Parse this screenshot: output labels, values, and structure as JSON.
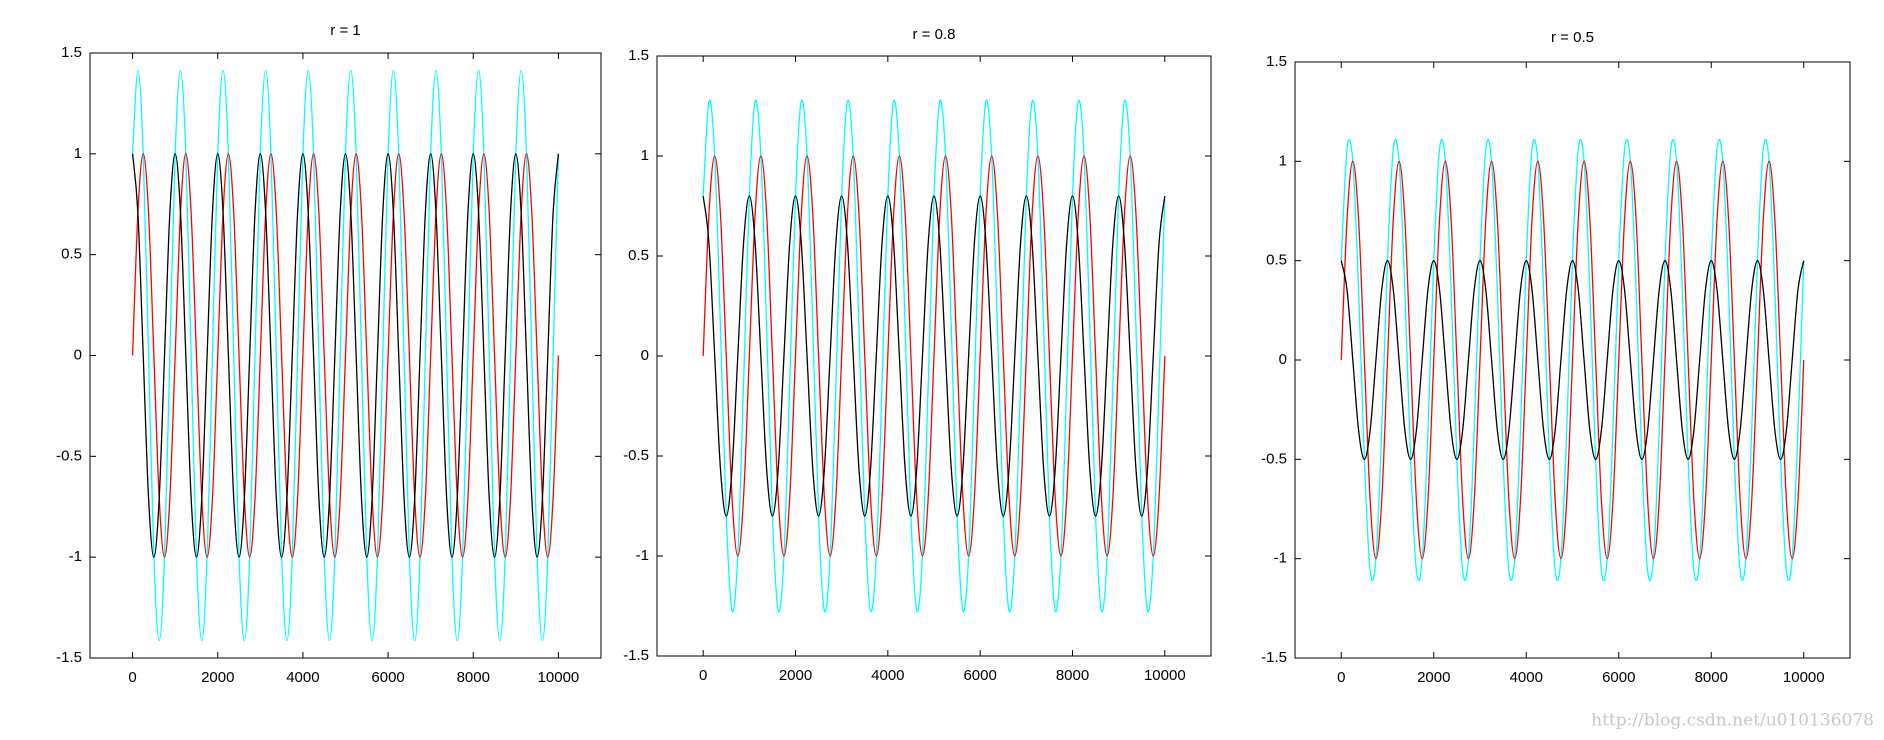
{
  "chart_data": [
    {
      "type": "line",
      "title": "r = 1",
      "x": [
        0,
        125,
        250,
        375,
        500,
        625,
        750,
        875,
        1000,
        1125,
        1250,
        1375,
        1500,
        1625,
        1750,
        1875,
        2000,
        2125,
        2250,
        2375,
        2500,
        2625,
        2750,
        2875,
        3000,
        3125,
        3250,
        3375,
        3500,
        3625,
        3750,
        3875,
        4000,
        4125,
        4250,
        4375,
        4500,
        4625,
        4750,
        4875,
        5000,
        5125,
        5250,
        5375,
        5500,
        5625,
        5750,
        5875,
        6000,
        6125,
        6250,
        6375,
        6500,
        6625,
        6750,
        6875,
        7000,
        7125,
        7250,
        7375,
        7500,
        7625,
        7750,
        7875,
        8000,
        8125,
        8250,
        8375,
        8500,
        8625,
        8750,
        8875,
        9000,
        9125,
        9250,
        9375,
        9500,
        9625,
        9750,
        9875,
        10000
      ],
      "series": [
        {
          "color": "#00ffff",
          "values": [
            1,
            1.414,
            1,
            0,
            -1,
            -1.414,
            -1,
            0,
            1,
            1.414,
            1,
            0,
            -1,
            -1.414,
            -1,
            0,
            1,
            1.414,
            1,
            0,
            -1,
            -1.414,
            -1,
            0,
            1,
            1.414,
            1,
            0,
            -1,
            -1.414,
            -1,
            0,
            1,
            1.414,
            1,
            0,
            -1,
            -1.414,
            -1,
            0,
            1,
            1.414,
            1,
            0,
            -1,
            -1.414,
            -1,
            0,
            1,
            1.414,
            1,
            0,
            -1,
            -1.414,
            -1,
            0,
            1,
            1.414,
            1,
            0,
            -1,
            -1.414,
            -1,
            0,
            1,
            1.414,
            1,
            0,
            -1,
            -1.414,
            -1,
            0,
            1,
            1.414,
            1,
            0,
            -1,
            -1.414,
            -1,
            0,
            1
          ]
        },
        {
          "color": "#ff0000",
          "values": [
            0,
            0.707,
            1,
            0.707,
            0,
            -0.707,
            -1,
            -0.707,
            0,
            0.707,
            1,
            0.707,
            0,
            -0.707,
            -1,
            -0.707,
            0,
            0.707,
            1,
            0.707,
            0,
            -0.707,
            -1,
            -0.707,
            0,
            0.707,
            1,
            0.707,
            0,
            -0.707,
            -1,
            -0.707,
            0,
            0.707,
            1,
            0.707,
            0,
            -0.707,
            -1,
            -0.707,
            0,
            0.707,
            1,
            0.707,
            0,
            -0.707,
            -1,
            -0.707,
            0,
            0.707,
            1,
            0.707,
            0,
            -0.707,
            -1,
            -0.707,
            0,
            0.707,
            1,
            0.707,
            0,
            -0.707,
            -1,
            -0.707,
            0,
            0.707,
            1,
            0.707,
            0,
            -0.707,
            -1,
            -0.707,
            0,
            0.707,
            1,
            0.707,
            0,
            -0.707,
            -1,
            -0.707,
            0
          ]
        },
        {
          "color": "#000000",
          "values": [
            1,
            0.707,
            0,
            -0.707,
            -1,
            -0.707,
            0,
            0.707,
            1,
            0.707,
            0,
            -0.707,
            -1,
            -0.707,
            0,
            0.707,
            1,
            0.707,
            0,
            -0.707,
            -1,
            -0.707,
            0,
            0.707,
            1,
            0.707,
            0,
            -0.707,
            -1,
            -0.707,
            0,
            0.707,
            1,
            0.707,
            0,
            -0.707,
            -1,
            -0.707,
            0,
            0.707,
            1,
            0.707,
            0,
            -0.707,
            -1,
            -0.707,
            0,
            0.707,
            1,
            0.707,
            0,
            -0.707,
            -1,
            -0.707,
            0,
            0.707,
            1,
            0.707,
            0,
            -0.707,
            -1,
            -0.707,
            0,
            0.707,
            1,
            0.707,
            0,
            -0.707,
            -1,
            -0.707,
            0,
            0.707,
            1,
            0.707,
            0,
            -0.707,
            -1,
            -0.707,
            0,
            0.707,
            1
          ]
        }
      ],
      "xlim": [
        -1000,
        11000
      ],
      "xticks": [
        0,
        2000,
        4000,
        6000,
        8000,
        10000
      ],
      "ylim": [
        -1.5,
        1.5
      ],
      "yticks": [
        -1.5,
        -1,
        -0.5,
        0,
        0.5,
        1,
        1.5
      ]
    },
    {
      "type": "line",
      "title": "r = 0.8",
      "x": [
        0,
        125,
        250,
        375,
        500,
        625,
        750,
        875,
        1000,
        1125,
        1250,
        1375,
        1500,
        1625,
        1750,
        1875,
        2000,
        2125,
        2250,
        2375,
        2500,
        2625,
        2750,
        2875,
        3000,
        3125,
        3250,
        3375,
        3500,
        3625,
        3750,
        3875,
        4000,
        4125,
        4250,
        4375,
        4500,
        4625,
        4750,
        4875,
        5000,
        5125,
        5250,
        5375,
        5500,
        5625,
        5750,
        5875,
        6000,
        6125,
        6250,
        6375,
        6500,
        6625,
        6750,
        6875,
        7000,
        7125,
        7250,
        7375,
        7500,
        7625,
        7750,
        7875,
        8000,
        8125,
        8250,
        8375,
        8500,
        8625,
        8750,
        8875,
        9000,
        9125,
        9250,
        9375,
        9500,
        9625,
        9750,
        9875,
        10000
      ],
      "series": [
        {
          "color": "#00ffff",
          "values": [
            0.8,
            1.273,
            1,
            0.141,
            -0.8,
            -1.273,
            -1,
            -0.141,
            0.8,
            1.273,
            1,
            0.141,
            -0.8,
            -1.273,
            -1,
            -0.141,
            0.8,
            1.273,
            1,
            0.141,
            -0.8,
            -1.273,
            -1,
            -0.141,
            0.8,
            1.273,
            1,
            0.141,
            -0.8,
            -1.273,
            -1,
            -0.141,
            0.8,
            1.273,
            1,
            0.141,
            -0.8,
            -1.273,
            -1,
            -0.141,
            0.8,
            1.273,
            1,
            0.141,
            -0.8,
            -1.273,
            -1,
            -0.141,
            0.8,
            1.273,
            1,
            0.141,
            -0.8,
            -1.273,
            -1,
            -0.141,
            0.8,
            1.273,
            1,
            0.141,
            -0.8,
            -1.273,
            -1,
            -0.141,
            0.8,
            1.273,
            1,
            0.141,
            -0.8,
            -1.273,
            -1,
            -0.141,
            0.8,
            1.273,
            1,
            0.141,
            -0.8,
            -1.273,
            -1,
            -0.141,
            0.8
          ]
        },
        {
          "color": "#ff0000",
          "values": [
            0,
            0.707,
            1,
            0.707,
            0,
            -0.707,
            -1,
            -0.707,
            0,
            0.707,
            1,
            0.707,
            0,
            -0.707,
            -1,
            -0.707,
            0,
            0.707,
            1,
            0.707,
            0,
            -0.707,
            -1,
            -0.707,
            0,
            0.707,
            1,
            0.707,
            0,
            -0.707,
            -1,
            -0.707,
            0,
            0.707,
            1,
            0.707,
            0,
            -0.707,
            -1,
            -0.707,
            0,
            0.707,
            1,
            0.707,
            0,
            -0.707,
            -1,
            -0.707,
            0,
            0.707,
            1,
            0.707,
            0,
            -0.707,
            -1,
            -0.707,
            0,
            0.707,
            1,
            0.707,
            0,
            -0.707,
            -1,
            -0.707,
            0,
            0.707,
            1,
            0.707,
            0,
            -0.707,
            -1,
            -0.707,
            0,
            0.707,
            1,
            0.707,
            0,
            -0.707,
            -1,
            -0.707,
            0
          ]
        },
        {
          "color": "#000000",
          "values": [
            0.8,
            0.566,
            0,
            -0.566,
            -0.8,
            -0.566,
            0,
            0.566,
            0.8,
            0.566,
            0,
            -0.566,
            -0.8,
            -0.566,
            0,
            0.566,
            0.8,
            0.566,
            0,
            -0.566,
            -0.8,
            -0.566,
            0,
            0.566,
            0.8,
            0.566,
            0,
            -0.566,
            -0.8,
            -0.566,
            0,
            0.566,
            0.8,
            0.566,
            0,
            -0.566,
            -0.8,
            -0.566,
            0,
            0.566,
            0.8,
            0.566,
            0,
            -0.566,
            -0.8,
            -0.566,
            0,
            0.566,
            0.8,
            0.566,
            0,
            -0.566,
            -0.8,
            -0.566,
            0,
            0.566,
            0.8,
            0.566,
            0,
            -0.566,
            -0.8,
            -0.566,
            0,
            0.566,
            0.8,
            0.566,
            0,
            -0.566,
            -0.8,
            -0.566,
            0,
            0.566,
            0.8,
            0.566,
            0,
            -0.566,
            -0.8,
            -0.566,
            0,
            0.566,
            0.8
          ]
        }
      ],
      "xlim": [
        -1000,
        11000
      ],
      "xticks": [
        0,
        2000,
        4000,
        6000,
        8000,
        10000
      ],
      "ylim": [
        -1.5,
        1.5
      ],
      "yticks": [
        -1.5,
        -1,
        -0.5,
        0,
        0.5,
        1,
        1.5
      ]
    },
    {
      "type": "line",
      "title": "r = 0.5",
      "x": [
        0,
        125,
        250,
        375,
        500,
        625,
        750,
        875,
        1000,
        1125,
        1250,
        1375,
        1500,
        1625,
        1750,
        1875,
        2000,
        2125,
        2250,
        2375,
        2500,
        2625,
        2750,
        2875,
        3000,
        3125,
        3250,
        3375,
        3500,
        3625,
        3750,
        3875,
        4000,
        4125,
        4250,
        4375,
        4500,
        4625,
        4750,
        4875,
        5000,
        5125,
        5250,
        5375,
        5500,
        5625,
        5750,
        5875,
        6000,
        6125,
        6250,
        6375,
        6500,
        6625,
        6750,
        6875,
        7000,
        7125,
        7250,
        7375,
        7500,
        7625,
        7750,
        7875,
        8000,
        8125,
        8250,
        8375,
        8500,
        8625,
        8750,
        8875,
        9000,
        9125,
        9250,
        9375,
        9500,
        9625,
        9750,
        9875,
        10000
      ],
      "series": [
        {
          "color": "#00ffff",
          "values": [
            0.5,
            1.061,
            1,
            0.354,
            -0.5,
            -1.061,
            -1,
            -0.354,
            0.5,
            1.061,
            1,
            0.354,
            -0.5,
            -1.061,
            -1,
            -0.354,
            0.5,
            1.061,
            1,
            0.354,
            -0.5,
            -1.061,
            -1,
            -0.354,
            0.5,
            1.061,
            1,
            0.354,
            -0.5,
            -1.061,
            -1,
            -0.354,
            0.5,
            1.061,
            1,
            0.354,
            -0.5,
            -1.061,
            -1,
            -0.354,
            0.5,
            1.061,
            1,
            0.354,
            -0.5,
            -1.061,
            -1,
            -0.354,
            0.5,
            1.061,
            1,
            0.354,
            -0.5,
            -1.061,
            -1,
            -0.354,
            0.5,
            1.061,
            1,
            0.354,
            -0.5,
            -1.061,
            -1,
            -0.354,
            0.5,
            1.061,
            1,
            0.354,
            -0.5,
            -1.061,
            -1,
            -0.354,
            0.5,
            1.061,
            1,
            0.354,
            -0.5,
            -1.061,
            -1,
            -0.354,
            0.5
          ]
        },
        {
          "color": "#ff0000",
          "values": [
            0,
            0.707,
            1,
            0.707,
            0,
            -0.707,
            -1,
            -0.707,
            0,
            0.707,
            1,
            0.707,
            0,
            -0.707,
            -1,
            -0.707,
            0,
            0.707,
            1,
            0.707,
            0,
            -0.707,
            -1,
            -0.707,
            0,
            0.707,
            1,
            0.707,
            0,
            -0.707,
            -1,
            -0.707,
            0,
            0.707,
            1,
            0.707,
            0,
            -0.707,
            -1,
            -0.707,
            0,
            0.707,
            1,
            0.707,
            0,
            -0.707,
            -1,
            -0.707,
            0,
            0.707,
            1,
            0.707,
            0,
            -0.707,
            -1,
            -0.707,
            0,
            0.707,
            1,
            0.707,
            0,
            -0.707,
            -1,
            -0.707,
            0,
            0.707,
            1,
            0.707,
            0,
            -0.707,
            -1,
            -0.707,
            0,
            0.707,
            1,
            0.707,
            0,
            -0.707,
            -1,
            -0.707,
            0
          ]
        },
        {
          "color": "#000000",
          "values": [
            0.5,
            0.354,
            0,
            -0.354,
            -0.5,
            -0.354,
            0,
            0.354,
            0.5,
            0.354,
            0,
            -0.354,
            -0.5,
            -0.354,
            0,
            0.354,
            0.5,
            0.354,
            0,
            -0.354,
            -0.5,
            -0.354,
            0,
            0.354,
            0.5,
            0.354,
            0,
            -0.354,
            -0.5,
            -0.354,
            0,
            0.354,
            0.5,
            0.354,
            0,
            -0.354,
            -0.5,
            -0.354,
            0,
            0.354,
            0.5,
            0.354,
            0,
            -0.354,
            -0.5,
            -0.354,
            0,
            0.354,
            0.5,
            0.354,
            0,
            -0.354,
            -0.5,
            -0.354,
            0,
            0.354,
            0.5,
            0.354,
            0,
            -0.354,
            -0.5,
            -0.354,
            0,
            0.354,
            0.5,
            0.354,
            0,
            -0.354,
            -0.5,
            -0.354,
            0,
            0.354,
            0.5,
            0.354,
            0,
            -0.354,
            -0.5,
            -0.354,
            0,
            0.354,
            0.5
          ]
        }
      ],
      "xlim": [
        -1000,
        11000
      ],
      "xticks": [
        0,
        2000,
        4000,
        6000,
        8000,
        10000
      ],
      "ylim": [
        -1.5,
        1.5
      ],
      "yticks": [
        -1.5,
        -1,
        -0.5,
        0,
        0.5,
        1,
        1.5
      ]
    }
  ],
  "watermark": "http://blog.csdn.net/u010136078"
}
